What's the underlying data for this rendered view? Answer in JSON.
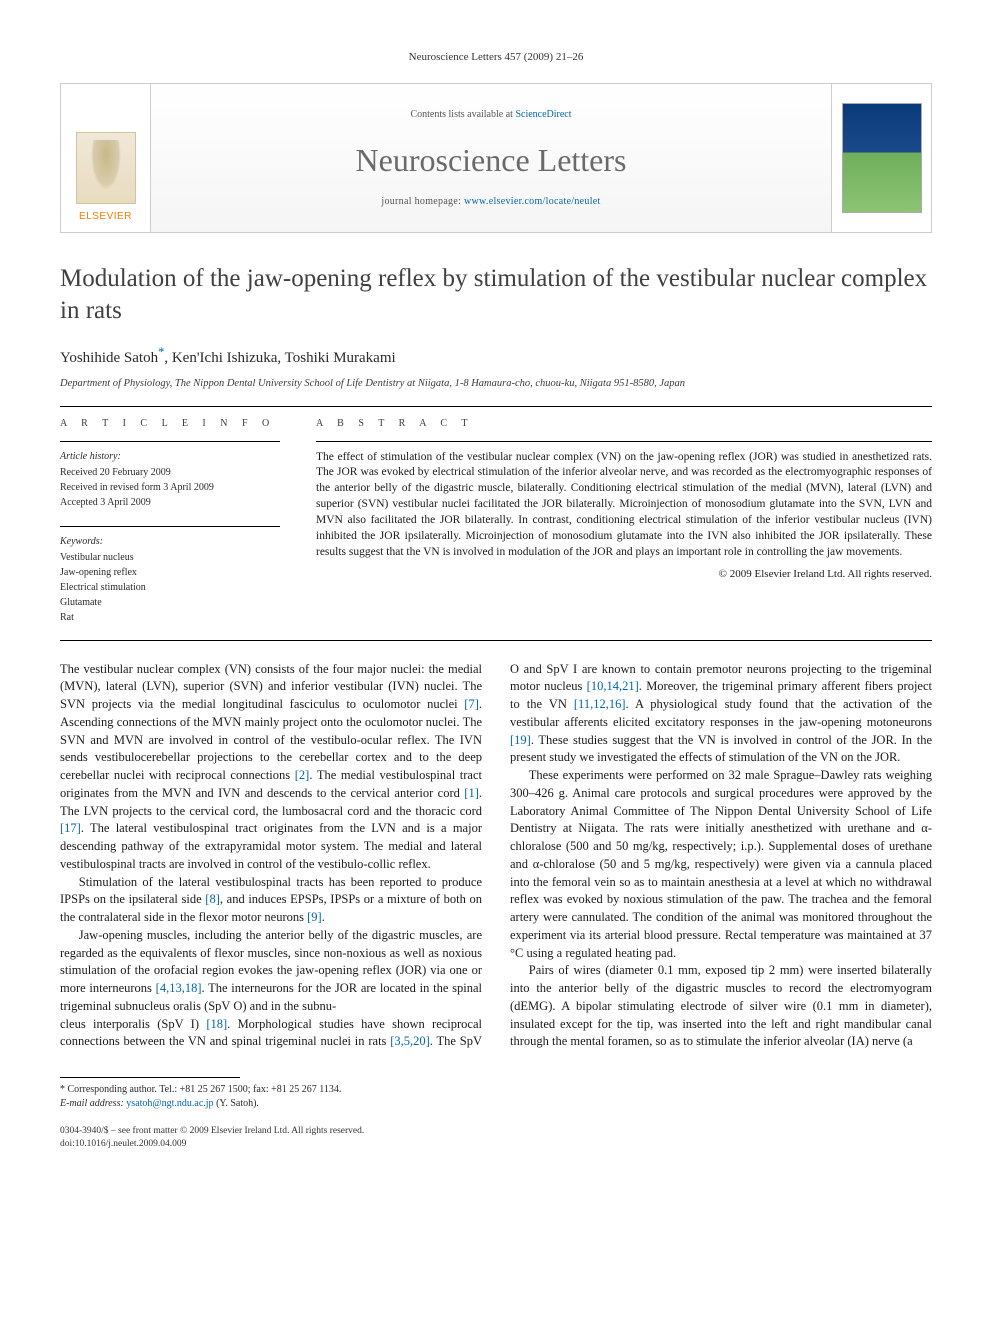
{
  "running_head": "Neuroscience Letters 457 (2009) 21–26",
  "banner": {
    "contents_prefix": "Contents lists available at ",
    "contents_link": "ScienceDirect",
    "journal_name": "Neuroscience Letters",
    "homepage_prefix": "journal homepage: ",
    "homepage_link": "www.elsevier.com/locate/neulet",
    "elsevier_label": "ELSEVIER"
  },
  "title": "Modulation of the jaw-opening reflex by stimulation of the vestibular nuclear complex in rats",
  "authors_html": "Yoshihide Satoh",
  "author_corr_marker": "*",
  "authors_rest": ", Ken'Ichi Ishizuka, Toshiki Murakami",
  "affiliation": "Department of Physiology, The Nippon Dental University School of Life Dentistry at Niigata, 1-8 Hamaura-cho, chuou-ku, Niigata 951-8580, Japan",
  "section_heads": {
    "article_info": "a r t i c l e   i n f o",
    "abstract": "a b s t r a c t"
  },
  "history": {
    "head": "Article history:",
    "received": "Received 20 February 2009",
    "revised": "Received in revised form 3 April 2009",
    "accepted": "Accepted 3 April 2009"
  },
  "keywords": {
    "head": "Keywords:",
    "items": [
      "Vestibular nucleus",
      "Jaw-opening reflex",
      "Electrical stimulation",
      "Glutamate",
      "Rat"
    ]
  },
  "abstract": "The effect of stimulation of the vestibular nuclear complex (VN) on the jaw-opening reflex (JOR) was studied in anesthetized rats. The JOR was evoked by electrical stimulation of the inferior alveolar nerve, and was recorded as the electromyographic responses of the anterior belly of the digastric muscle, bilaterally. Conditioning electrical stimulation of the medial (MVN), lateral (LVN) and superior (SVN) vestibular nuclei facilitated the JOR bilaterally. Microinjection of monosodium glutamate into the SVN, LVN and MVN also facilitated the JOR bilaterally. In contrast, conditioning electrical stimulation of the inferior vestibular nucleus (IVN) inhibited the JOR ipsilaterally. Microinjection of monosodium glutamate into the IVN also inhibited the JOR ipsilaterally. These results suggest that the VN is involved in modulation of the JOR and plays an important role in controlling the jaw movements.",
  "copyright": "© 2009 Elsevier Ireland Ltd. All rights reserved.",
  "body": {
    "p1": "The vestibular nuclear complex (VN) consists of the four major nuclei: the medial (MVN), lateral (LVN), superior (SVN) and inferior vestibular (IVN) nuclei. The SVN projects via the medial longitudinal fasciculus to oculomotor nuclei [7]. Ascending connections of the MVN mainly project onto the oculomotor nuclei. The SVN and MVN are involved in control of the vestibulo-ocular reflex. The IVN sends vestibulocerebellar projections to the cerebellar cortex and to the deep cerebellar nuclei with reciprocal connections [2]. The medial vestibulospinal tract originates from the MVN and IVN and descends to the cervical anterior cord [1]. The LVN projects to the cervical cord, the lumbosacral cord and the thoracic cord [17]. The lateral vestibulospinal tract originates from the LVN and is a major descending pathway of the extrapyramidal motor system. The medial and lateral vestibulospinal tracts are involved in control of the vestibulo-collic reflex.",
    "p2": "Stimulation of the lateral vestibulospinal tracts has been reported to produce IPSPs on the ipsilateral side [8], and induces EPSPs, IPSPs or a mixture of both on the contralateral side in the flexor motor neurons [9].",
    "p3": "Jaw-opening muscles, including the anterior belly of the digastric muscles, are regarded as the equivalents of flexor muscles, since non-noxious as well as noxious stimulation of the orofacial region evokes the jaw-opening reflex (JOR) via one or more interneurons [4,13,18]. The interneurons for the JOR are located in the spinal trigeminal subnucleus oralis (SpV O) and in the subnu-",
    "p4": "cleus interporalis (SpV I) [18]. Morphological studies have shown reciprocal connections between the VN and spinal trigeminal nuclei in rats [3,5,20]. The SpV O and SpV I are known to contain premotor neurons projecting to the trigeminal motor nucleus [10,14,21]. Moreover, the trigeminal primary afferent fibers project to the VN [11,12,16]. A physiological study found that the activation of the vestibular afferents elicited excitatory responses in the jaw-opening motoneurons [19]. These studies suggest that the VN is involved in control of the JOR. In the present study we investigated the effects of stimulation of the VN on the JOR.",
    "p5": "These experiments were performed on 32 male Sprague–Dawley rats weighing 300–426 g. Animal care protocols and surgical procedures were approved by the Laboratory Animal Committee of The Nippon Dental University School of Life Dentistry at Niigata. The rats were initially anesthetized with urethane and α-chloralose (500 and 50 mg/kg, respectively; i.p.). Supplemental doses of urethane and α-chloralose (50 and 5 mg/kg, respectively) were given via a cannula placed into the femoral vein so as to maintain anesthesia at a level at which no withdrawal reflex was evoked by noxious stimulation of the paw. The trachea and the femoral artery were cannulated. The condition of the animal was monitored throughout the experiment via its arterial blood pressure. Rectal temperature was maintained at 37 °C using a regulated heating pad.",
    "p6": "Pairs of wires (diameter 0.1 mm, exposed tip 2 mm) were inserted bilaterally into the anterior belly of the digastric muscles to record the electromyogram (dEMG). A bipolar stimulating electrode of silver wire (0.1 mm in diameter), insulated except for the tip, was inserted into the left and right mandibular canal through the mental foramen, so as to stimulate the inferior alveolar (IA) nerve (a"
  },
  "footnote": {
    "corr": "* Corresponding author. Tel.: +81 25 267 1500; fax: +81 25 267 1134.",
    "email_label": "E-mail address: ",
    "email": "ysatoh@ngt.ndu.ac.jp",
    "email_suffix": " (Y. Satoh)."
  },
  "bottom": {
    "line1": "0304-3940/$ – see front matter © 2009 Elsevier Ireland Ltd. All rights reserved.",
    "line2": "doi:10.1016/j.neulet.2009.04.009"
  },
  "refs_in_text": [
    "[7]",
    "[2]",
    "[1]",
    "[17]",
    "[8]",
    "[9]",
    "[4,13,18]",
    "[18]",
    "[3,5,20]",
    "[10,14,21]",
    "[11,12,16]",
    "[19]"
  ],
  "colors": {
    "link": "#0066aa",
    "elsevier_orange": "#ff7a00",
    "title_gray": "#404040",
    "journal_gray": "#6a6a6a"
  }
}
